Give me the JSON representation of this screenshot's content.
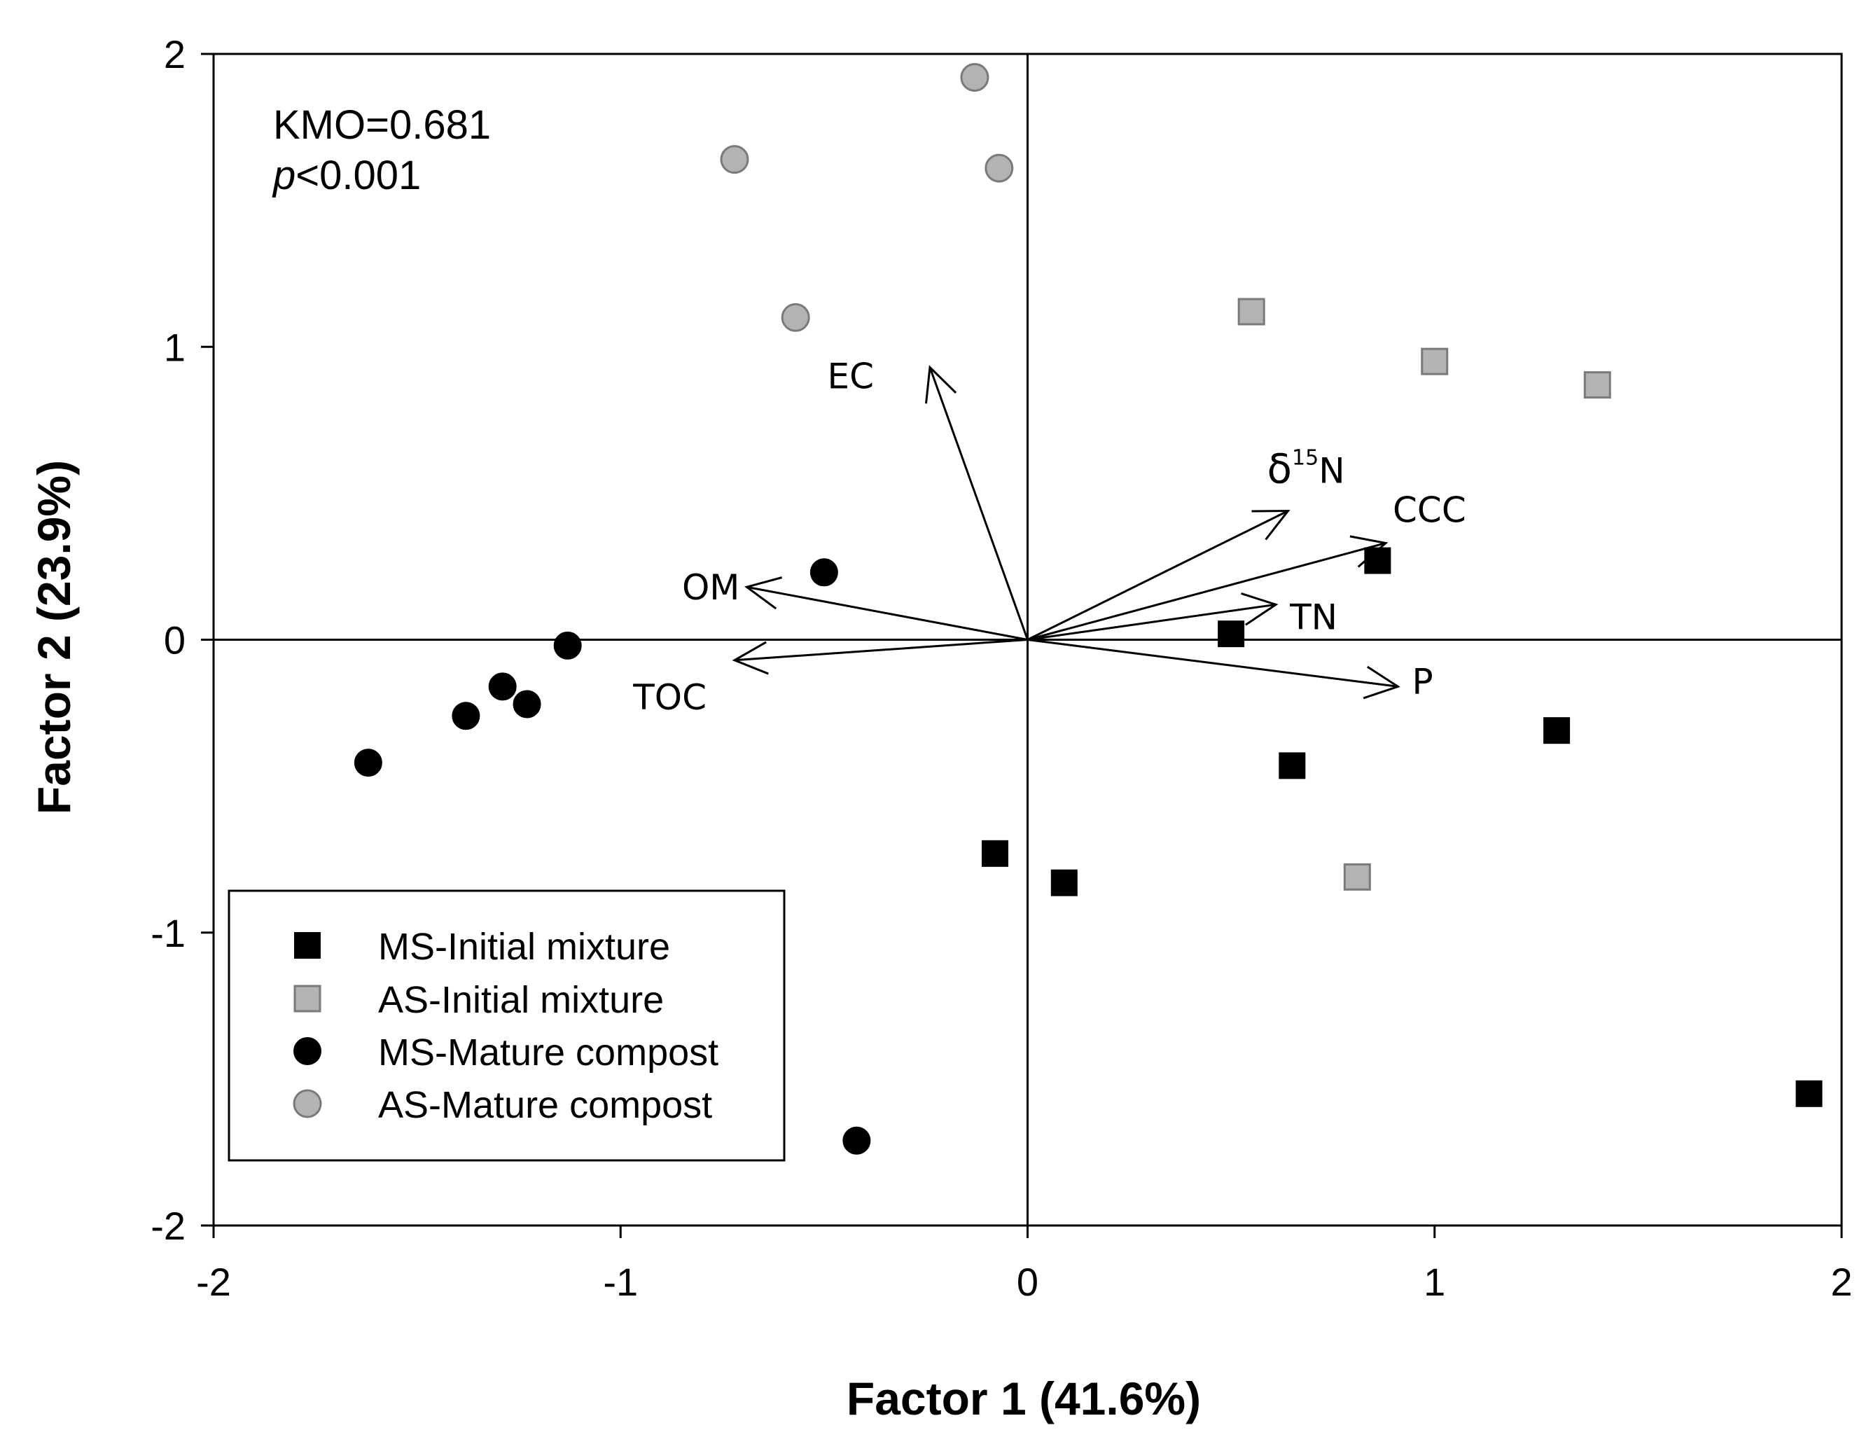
{
  "chart_data": {
    "type": "scatter",
    "title": "",
    "xlabel": "Factor 1 (41.6%)",
    "ylabel": "Factor 2 (23.9%)",
    "xlim": [
      -2,
      2
    ],
    "ylim": [
      -2,
      2
    ],
    "xticks": [
      -2,
      -1,
      0,
      1,
      2
    ],
    "yticks": [
      -2,
      -1,
      0,
      1,
      2
    ],
    "tick_labels_x": [
      "-2",
      "-1",
      "0",
      "1",
      "2"
    ],
    "tick_labels_y": [
      "-2",
      "-1",
      "0",
      "1",
      "2"
    ],
    "grid": false,
    "legend_position": "bottom-left",
    "annotations": {
      "kmo": "KMO=0.681",
      "p_italic": "p",
      "p_rest": "<0.001"
    },
    "series": [
      {
        "name": "MS-Initial mixture",
        "marker": "square",
        "color": "#000000",
        "points": [
          [
            0.86,
            0.27
          ],
          [
            0.5,
            0.02
          ],
          [
            0.65,
            -0.43
          ],
          [
            1.3,
            -0.31
          ],
          [
            -0.08,
            -0.73
          ],
          [
            0.09,
            -0.83
          ],
          [
            1.92,
            -1.55
          ]
        ]
      },
      {
        "name": "AS-Initial mixture",
        "marker": "square",
        "color": "#b3b3b3",
        "points": [
          [
            0.55,
            1.12
          ],
          [
            1.0,
            0.95
          ],
          [
            1.4,
            0.87
          ],
          [
            0.81,
            -0.81
          ]
        ]
      },
      {
        "name": "MS-Mature compost",
        "marker": "circle",
        "color": "#000000",
        "points": [
          [
            -0.5,
            0.23
          ],
          [
            -1.13,
            -0.02
          ],
          [
            -1.29,
            -0.16
          ],
          [
            -1.38,
            -0.26
          ],
          [
            -1.23,
            -0.22
          ],
          [
            -1.62,
            -0.42
          ],
          [
            -0.42,
            -1.71
          ]
        ]
      },
      {
        "name": "AS-Mature compost",
        "marker": "circle",
        "color": "#b3b3b3",
        "points": [
          [
            -0.13,
            1.92
          ],
          [
            -0.72,
            1.64
          ],
          [
            -0.07,
            1.61
          ],
          [
            -0.57,
            1.1
          ]
        ]
      }
    ],
    "loadings": [
      {
        "name": "EC",
        "x": -0.24,
        "y": 0.93
      },
      {
        "name": "OM",
        "x": -0.69,
        "y": 0.18
      },
      {
        "name": "TOC",
        "x": -0.72,
        "y": -0.07
      },
      {
        "name": "δ15N",
        "label_main": "δ",
        "label_sup": "15",
        "label_tail": "N",
        "x": 0.64,
        "y": 0.44
      },
      {
        "name": "CCC",
        "x": 0.88,
        "y": 0.33
      },
      {
        "name": "TN",
        "x": 0.61,
        "y": 0.12
      },
      {
        "name": "P",
        "x": 0.91,
        "y": -0.16
      }
    ]
  }
}
